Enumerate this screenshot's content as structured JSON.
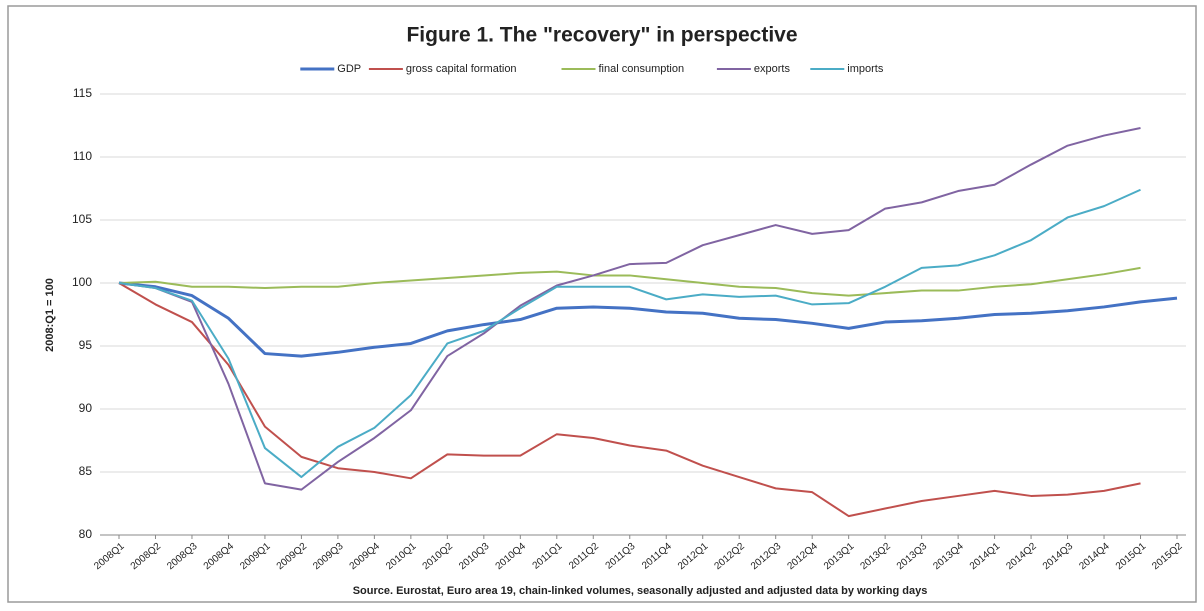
{
  "chart_data": {
    "type": "line",
    "title": "Figure 1. The \"recovery\" in perspective",
    "y_label": "2008:Q1 = 100",
    "source": "Source. Eurostat, Euro area 19, chain-linked volumes, seasonally adjusted and adjusted data by working days",
    "categories": [
      "2008Q1",
      "2008Q2",
      "2008Q3",
      "2008Q4",
      "2009Q1",
      "2009Q2",
      "2009Q3",
      "2009Q4",
      "2010Q1",
      "2010Q2",
      "2010Q3",
      "2010Q4",
      "2011Q1",
      "2011Q2",
      "2011Q3",
      "2011Q4",
      "2012Q1",
      "2012Q2",
      "2012Q3",
      "2012Q4",
      "2013Q1",
      "2013Q2",
      "2013Q3",
      "2013Q4",
      "2014Q1",
      "2014Q2",
      "2014Q3",
      "2014Q4",
      "2015Q1",
      "2015Q2"
    ],
    "series": [
      {
        "name": "GDP",
        "color": "#4472c4",
        "values": [
          100,
          99.7,
          99.0,
          97.2,
          94.4,
          94.2,
          94.5,
          94.9,
          95.2,
          96.2,
          96.7,
          97.1,
          98.0,
          98.1,
          98.0,
          97.7,
          97.6,
          97.2,
          97.1,
          96.8,
          96.4,
          96.9,
          97.0,
          97.2,
          97.5,
          97.6,
          97.8,
          98.1,
          98.5,
          98.8
        ]
      },
      {
        "name": "gross capital formation",
        "color": "#c0504d",
        "values": [
          100,
          98.3,
          96.9,
          93.5,
          88.6,
          86.2,
          85.3,
          85.0,
          84.5,
          86.4,
          86.3,
          86.3,
          88.0,
          87.7,
          87.1,
          86.7,
          85.5,
          84.6,
          83.7,
          83.4,
          81.5,
          82.1,
          82.7,
          83.1,
          83.5,
          83.1,
          83.2,
          83.5,
          84.1,
          null
        ]
      },
      {
        "name": "final consumption",
        "color": "#9bbb59",
        "values": [
          100,
          100.1,
          99.7,
          99.7,
          99.6,
          99.7,
          99.7,
          100.0,
          100.2,
          100.4,
          100.6,
          100.8,
          100.9,
          100.6,
          100.6,
          100.3,
          100.0,
          99.7,
          99.6,
          99.2,
          99.0,
          99.2,
          99.4,
          99.4,
          99.7,
          99.9,
          100.3,
          100.7,
          101.2,
          null
        ]
      },
      {
        "name": "exports",
        "color": "#8064a2",
        "values": [
          100,
          99.6,
          98.5,
          92.0,
          84.1,
          83.6,
          85.8,
          87.7,
          89.9,
          94.2,
          96.0,
          98.2,
          99.8,
          100.6,
          101.5,
          101.6,
          103.0,
          103.8,
          104.6,
          103.9,
          104.2,
          105.9,
          106.4,
          107.3,
          107.8,
          109.4,
          110.9,
          111.7,
          112.3,
          null
        ]
      },
      {
        "name": "imports",
        "color": "#4bacc6",
        "values": [
          100,
          99.6,
          98.6,
          94.0,
          86.9,
          84.6,
          87.0,
          88.5,
          91.1,
          95.2,
          96.2,
          98.0,
          99.7,
          99.7,
          99.7,
          98.7,
          99.1,
          98.9,
          99.0,
          98.3,
          98.4,
          99.7,
          101.2,
          101.4,
          102.2,
          103.4,
          105.2,
          106.1,
          107.4,
          null
        ]
      }
    ],
    "ylim": [
      80,
      115
    ],
    "yticks": [
      80,
      85,
      90,
      95,
      100,
      105,
      110,
      115
    ],
    "grid": true,
    "legend": "top"
  }
}
